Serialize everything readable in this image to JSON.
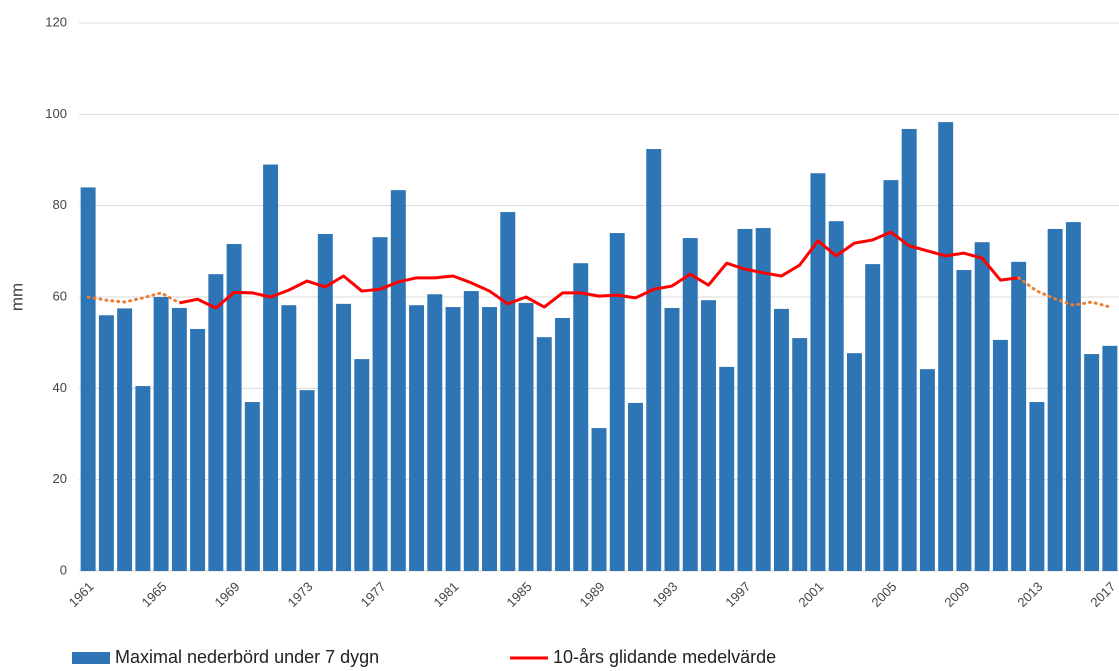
{
  "chart_data": {
    "type": "bar",
    "y_label": "mm",
    "categories": [
      "1961",
      null,
      null,
      null,
      "1965",
      null,
      null,
      null,
      "1969",
      null,
      null,
      null,
      "1973",
      null,
      null,
      null,
      "1977",
      null,
      null,
      null,
      "1981",
      null,
      null,
      null,
      "1985",
      null,
      null,
      null,
      "1989",
      null,
      null,
      null,
      "1993",
      null,
      null,
      null,
      "1997",
      null,
      null,
      null,
      "2001",
      null,
      null,
      null,
      "2005",
      null,
      null,
      null,
      "2009",
      null,
      null,
      null,
      "2013",
      null,
      null,
      null,
      "2017"
    ],
    "series": [
      {
        "name": "Maximal nederbörd under 7 dygn",
        "type": "bar",
        "color": "#2e75b6",
        "values": [
          84,
          56,
          57.5,
          40.5,
          60,
          57.6,
          53,
          65,
          71.6,
          37,
          89,
          58.2,
          39.6,
          73.8,
          58.5,
          46.4,
          73.1,
          83.4,
          58.2,
          60.6,
          57.8,
          61.3,
          57.8,
          78.6,
          58.7,
          51.2,
          55.4,
          67.4,
          31.3,
          74,
          36.8,
          92.4,
          57.6,
          72.9,
          59.3,
          44.7,
          74.9,
          75.1,
          57.4,
          51,
          87.1,
          76.6,
          47.7,
          67.2,
          85.6,
          96.8,
          44.2,
          98.3,
          65.9,
          72,
          50.6,
          67.7,
          37,
          74.9,
          76.4,
          47.5,
          49.3
        ]
      },
      {
        "name": "10-års glidande medelvärde",
        "type": "line",
        "color": "#ff0000",
        "values": [
          null,
          null,
          null,
          null,
          null,
          58.7,
          59.5,
          57.6,
          61,
          60.9,
          60,
          61.5,
          63.5,
          62.2,
          64.6,
          61.3,
          61.7,
          63.3,
          64.2,
          64.2,
          64.6,
          63.1,
          61.3,
          58.5,
          60,
          57.8,
          60.9,
          60.9,
          60.2,
          60.4,
          59.8,
          61.7,
          62.4,
          65,
          62.6,
          67.4,
          66.1,
          65.3,
          64.6,
          67,
          72.3,
          69,
          71.8,
          72.5,
          74.2,
          71.2,
          70.1,
          69,
          69.6,
          68.5,
          63.7,
          64.2,
          null,
          null,
          null,
          null,
          null
        ]
      },
      {
        "type": "line",
        "dashed": true,
        "color": "#ed7d31",
        "values": [
          60,
          59.3,
          58.9,
          59.8,
          60.9,
          58.7,
          null,
          null,
          null,
          null,
          null,
          null,
          null,
          null,
          null,
          null,
          null,
          null,
          null,
          null,
          null,
          null,
          null,
          null,
          null,
          null,
          null,
          null,
          null,
          null,
          null,
          null,
          null,
          null,
          null,
          null,
          null,
          null,
          null,
          null,
          null,
          null,
          null,
          null,
          null,
          null,
          null,
          null,
          null,
          null,
          null,
          64.2,
          61.3,
          59.6,
          58.2,
          58.9,
          57.8
        ]
      }
    ],
    "ylim": [
      0,
      120
    ],
    "yticks": [
      0,
      20,
      40,
      60,
      80,
      100,
      120
    ],
    "grid": true,
    "legend": "bottom"
  }
}
